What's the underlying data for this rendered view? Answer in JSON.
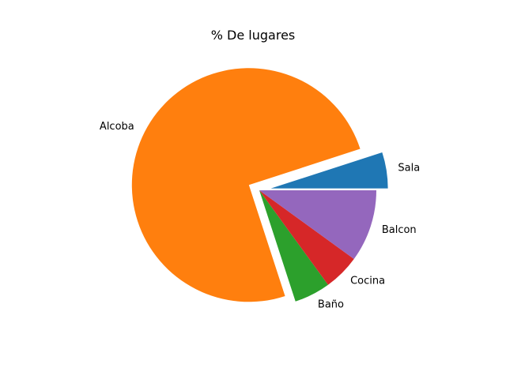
{
  "chart_data": {
    "type": "pie",
    "title": "% De lugares",
    "labels": [
      "Sala",
      "Alcoba",
      "Baño",
      "Cocina",
      "Balcon"
    ],
    "values": [
      5,
      75,
      5,
      5,
      10
    ],
    "colors": [
      "#1f77b4",
      "#ff7f0e",
      "#2ca02c",
      "#d62728",
      "#9467bd"
    ],
    "explode": [
      0.1,
      0.1,
      0,
      0,
      0
    ],
    "start_angle": 0,
    "direction": "counterclockwise"
  }
}
